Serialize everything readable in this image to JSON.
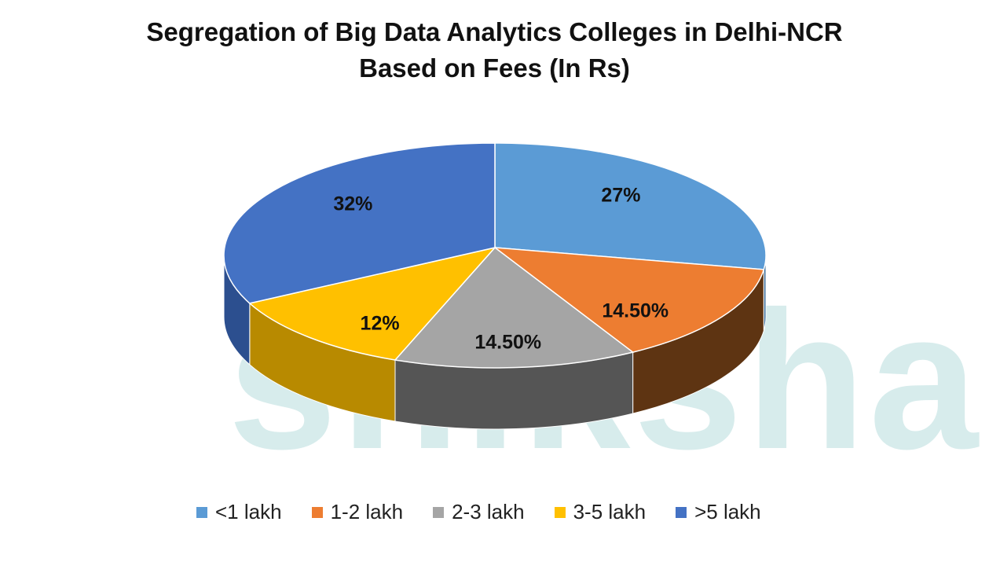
{
  "watermark": "shiksha",
  "chart_data": {
    "type": "pie",
    "title_line1": "Segregation of Big Data Analytics Colleges in Delhi-NCR",
    "title_line2": "Based on Fees (In Rs)",
    "style": "3d",
    "legend_position": "bottom",
    "slices": [
      {
        "name": "<1 lakh",
        "value": 27,
        "label": "27%",
        "color": "#5B9BD5",
        "side": "#3d6d99"
      },
      {
        "name": "1-2 lakh",
        "value": 14.5,
        "label": "14.50%",
        "color": "#ED7D31",
        "side": "#5e3412"
      },
      {
        "name": "2-3 lakh",
        "value": 14.5,
        "label": "14.50%",
        "color": "#A5A5A5",
        "side": "#555555"
      },
      {
        "name": "3-5 lakh",
        "value": 12,
        "label": "12%",
        "color": "#FFC000",
        "side": "#b88a00"
      },
      {
        "name": ">5 lakh",
        "value": 32,
        "label": "32%",
        "color": "#4472C4",
        "side": "#2c4f8f"
      }
    ]
  }
}
